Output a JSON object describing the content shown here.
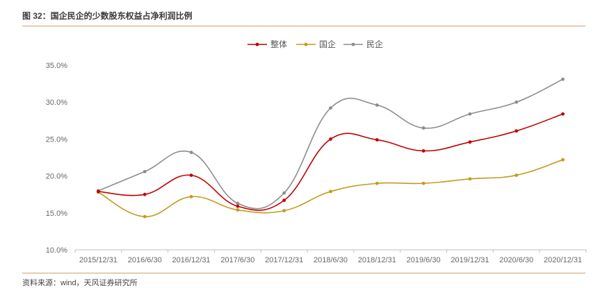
{
  "figure": {
    "title": "图 32：国企民企的少数股东权益占净利润比例",
    "source": "资料来源：wind，天风证券研究所"
  },
  "colors": {
    "整体": "#c00000",
    "国企": "#c49a1a",
    "民企": "#8c8c8c",
    "rule": "#c9a36b"
  },
  "chart_data": {
    "type": "line",
    "categories": [
      "2015/12/31",
      "2016/6/30",
      "2016/12/31",
      "2017/6/30",
      "2017/12/31",
      "2018/6/30",
      "2018/12/31",
      "2019/6/30",
      "2019/12/31",
      "2020/6/30",
      "2020/12/31"
    ],
    "series": [
      {
        "name": "整体",
        "values": [
          17.9,
          17.5,
          20.1,
          15.9,
          16.7,
          25.0,
          24.9,
          23.4,
          24.6,
          26.1,
          28.4
        ]
      },
      {
        "name": "国企",
        "values": [
          17.8,
          14.5,
          17.2,
          15.4,
          15.3,
          17.9,
          19.0,
          19.0,
          19.6,
          20.1,
          22.2
        ]
      },
      {
        "name": "民企",
        "values": [
          18.0,
          20.6,
          23.2,
          16.3,
          17.7,
          29.2,
          29.6,
          26.5,
          28.4,
          30.0,
          33.1
        ]
      }
    ],
    "ylim": [
      10.0,
      35.0
    ],
    "yticks": [
      10.0,
      15.0,
      20.0,
      25.0,
      30.0,
      35.0
    ],
    "ytick_labels": [
      "10.0%",
      "15.0%",
      "20.0%",
      "25.0%",
      "30.0%",
      "35.0%"
    ],
    "smooth": true,
    "grid": false,
    "legend": "top-center"
  }
}
